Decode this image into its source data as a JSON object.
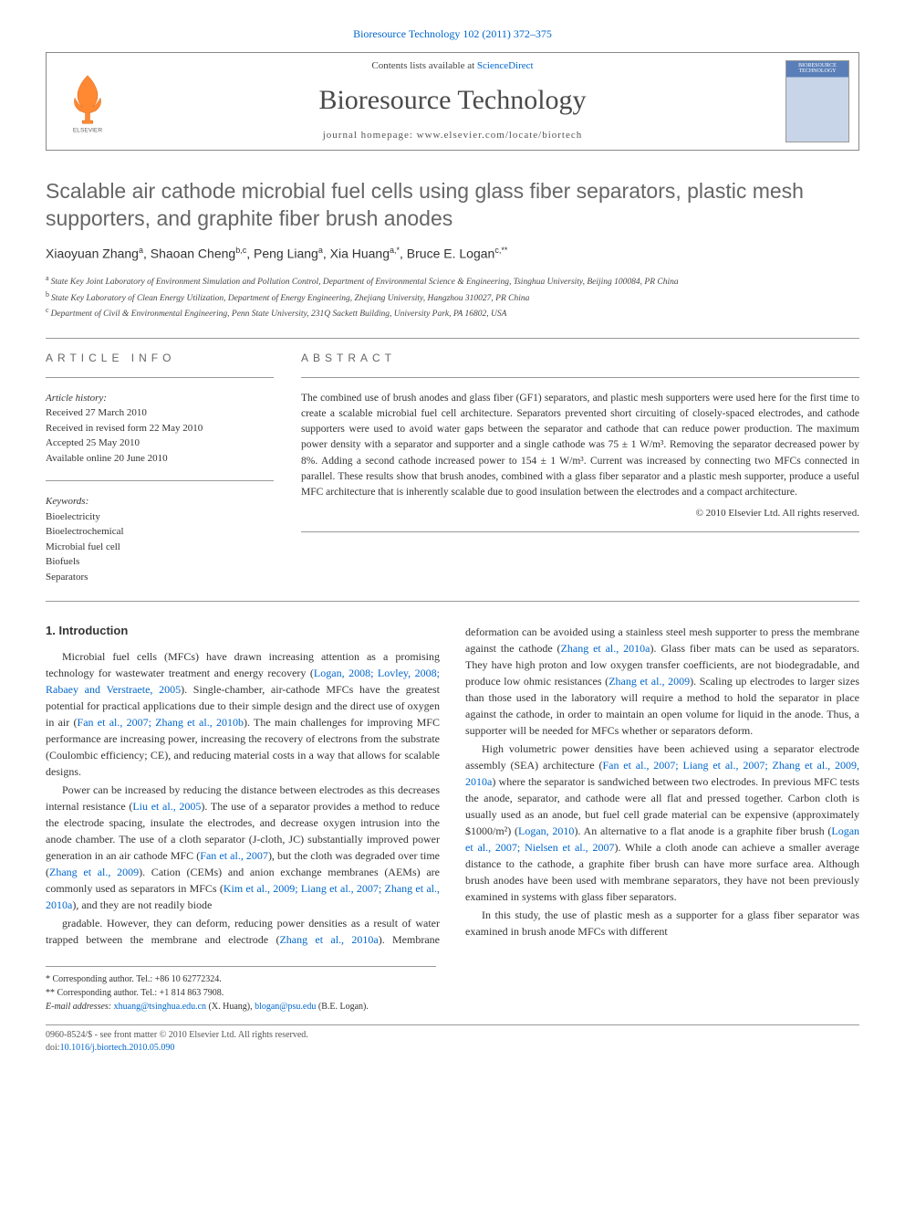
{
  "header": {
    "citation": "Bioresource Technology 102 (2011) 372–375",
    "contents_prefix": "Contents lists available at ",
    "contents_link": "ScienceDirect",
    "journal_name": "Bioresource Technology",
    "homepage_label": "journal homepage: www.elsevier.com/locate/biortech",
    "cover_label": "BIORESOURCE TECHNOLOGY"
  },
  "article": {
    "title": "Scalable air cathode microbial fuel cells using glass fiber separators, plastic mesh supporters, and graphite fiber brush anodes",
    "authors_html": "Xiaoyuan Zhang<sup>a</sup>, Shaoan Cheng<sup>b,c</sup>, Peng Liang<sup>a</sup>, Xia Huang<sup>a,*</sup>, Bruce E. Logan<sup>c,**</sup>",
    "affiliations": [
      {
        "sup": "a",
        "text": "State Key Joint Laboratory of Environment Simulation and Pollution Control, Department of Environmental Science & Engineering, Tsinghua University, Beijing 100084, PR China"
      },
      {
        "sup": "b",
        "text": "State Key Laboratory of Clean Energy Utilization, Department of Energy Engineering, Zhejiang University, Hangzhou 310027, PR China"
      },
      {
        "sup": "c",
        "text": "Department of Civil & Environmental Engineering, Penn State University, 231Q Sackett Building, University Park, PA 16802, USA"
      }
    ]
  },
  "meta": {
    "info_heading": "ARTICLE INFO",
    "history_label": "Article history:",
    "history": [
      "Received 27 March 2010",
      "Received in revised form 22 May 2010",
      "Accepted 25 May 2010",
      "Available online 20 June 2010"
    ],
    "keywords_label": "Keywords:",
    "keywords": [
      "Bioelectricity",
      "Bioelectrochemical",
      "Microbial fuel cell",
      "Biofuels",
      "Separators"
    ]
  },
  "abstract": {
    "heading": "ABSTRACT",
    "text": "The combined use of brush anodes and glass fiber (GF1) separators, and plastic mesh supporters were used here for the first time to create a scalable microbial fuel cell architecture. Separators prevented short circuiting of closely-spaced electrodes, and cathode supporters were used to avoid water gaps between the separator and cathode that can reduce power production. The maximum power density with a separator and supporter and a single cathode was 75 ± 1 W/m³. Removing the separator decreased power by 8%. Adding a second cathode increased power to 154 ± 1 W/m³. Current was increased by connecting two MFCs connected in parallel. These results show that brush anodes, combined with a glass fiber separator and a plastic mesh supporter, produce a useful MFC architecture that is inherently scalable due to good insulation between the electrodes and a compact architecture.",
    "copyright": "© 2010 Elsevier Ltd. All rights reserved."
  },
  "body": {
    "section_heading": "1. Introduction",
    "paragraphs": [
      "Microbial fuel cells (MFCs) have drawn increasing attention as a promising technology for wastewater treatment and energy recovery (<a class='ref-link'>Logan, 2008; Lovley, 2008; Rabaey and Verstraete, 2005</a>). Single-chamber, air-cathode MFCs have the greatest potential for practical applications due to their simple design and the direct use of oxygen in air (<a class='ref-link'>Fan et al., 2007; Zhang et al., 2010b</a>). The main challenges for improving MFC performance are increasing power, increasing the recovery of electrons from the substrate (Coulombic efficiency; CE), and reducing material costs in a way that allows for scalable designs.",
      "Power can be increased by reducing the distance between electrodes as this decreases internal resistance (<a class='ref-link'>Liu et al., 2005</a>). The use of a separator provides a method to reduce the electrode spacing, insulate the electrodes, and decrease oxygen intrusion into the anode chamber. The use of a cloth separator (J-cloth, JC) substantially improved power generation in an air cathode MFC (<a class='ref-link'>Fan et al., 2007</a>), but the cloth was degraded over time (<a class='ref-link'>Zhang et al., 2009</a>). Cation (CEMs) and anion exchange membranes (AEMs) are commonly used as separators in MFCs (<a class='ref-link'>Kim et al., 2009; Liang et al., 2007; Zhang et al., 2010a</a>), and they are not readily biode",
      "gradable. However, they can deform, reducing power densities as a result of water trapped between the membrane and electrode (<a class='ref-link'>Zhang et al., 2010a</a>). Membrane deformation can be avoided using a stainless steel mesh supporter to press the membrane against the cathode (<a class='ref-link'>Zhang et al., 2010a</a>). Glass fiber mats can be used as separators. They have high proton and low oxygen transfer coefficients, are not biodegradable, and produce low ohmic resistances (<a class='ref-link'>Zhang et al., 2009</a>). Scaling up electrodes to larger sizes than those used in the laboratory will require a method to hold the separator in place against the cathode, in order to maintain an open volume for liquid in the anode. Thus, a supporter will be needed for MFCs whether or separators deform.",
      "High volumetric power densities have been achieved using a separator electrode assembly (SEA) architecture (<a class='ref-link'>Fan et al., 2007; Liang et al., 2007; Zhang et al., 2009, 2010a</a>) where the separator is sandwiched between two electrodes. In previous MFC tests the anode, separator, and cathode were all flat and pressed together. Carbon cloth is usually used as an anode, but fuel cell grade material can be expensive (approximately $1000/m²) (<a class='ref-link'>Logan, 2010</a>). An alternative to a flat anode is a graphite fiber brush (<a class='ref-link'>Logan et al., 2007; Nielsen et al., 2007</a>). While a cloth anode can achieve a smaller average distance to the cathode, a graphite fiber brush can have more surface area. Although brush anodes have been used with membrane separators, they have not been previously examined in systems with glass fiber separators.",
      "In this study, the use of plastic mesh as a supporter for a glass fiber separator was examined in brush anode MFCs with different"
    ]
  },
  "footnotes": {
    "corr1": "* Corresponding author. Tel.: +86 10 62772324.",
    "corr2": "** Corresponding author. Tel.: +1 814 863 7908.",
    "emails_label": "E-mail addresses:",
    "email1": "xhuang@tsinghua.edu.cn",
    "email1_name": " (X. Huang), ",
    "email2": "blogan@psu.edu",
    "email2_name": " (B.E. Logan)."
  },
  "bottom": {
    "issn": "0960-8524/$ - see front matter © 2010 Elsevier Ltd. All rights reserved.",
    "doi_label": "doi:",
    "doi": "10.1016/j.biortech.2010.05.090"
  },
  "colors": {
    "link": "#0066cc",
    "title_gray": "#666666",
    "text": "#333333",
    "logo_orange": "#ff6600",
    "cover_blue": "#5a7fb8"
  }
}
